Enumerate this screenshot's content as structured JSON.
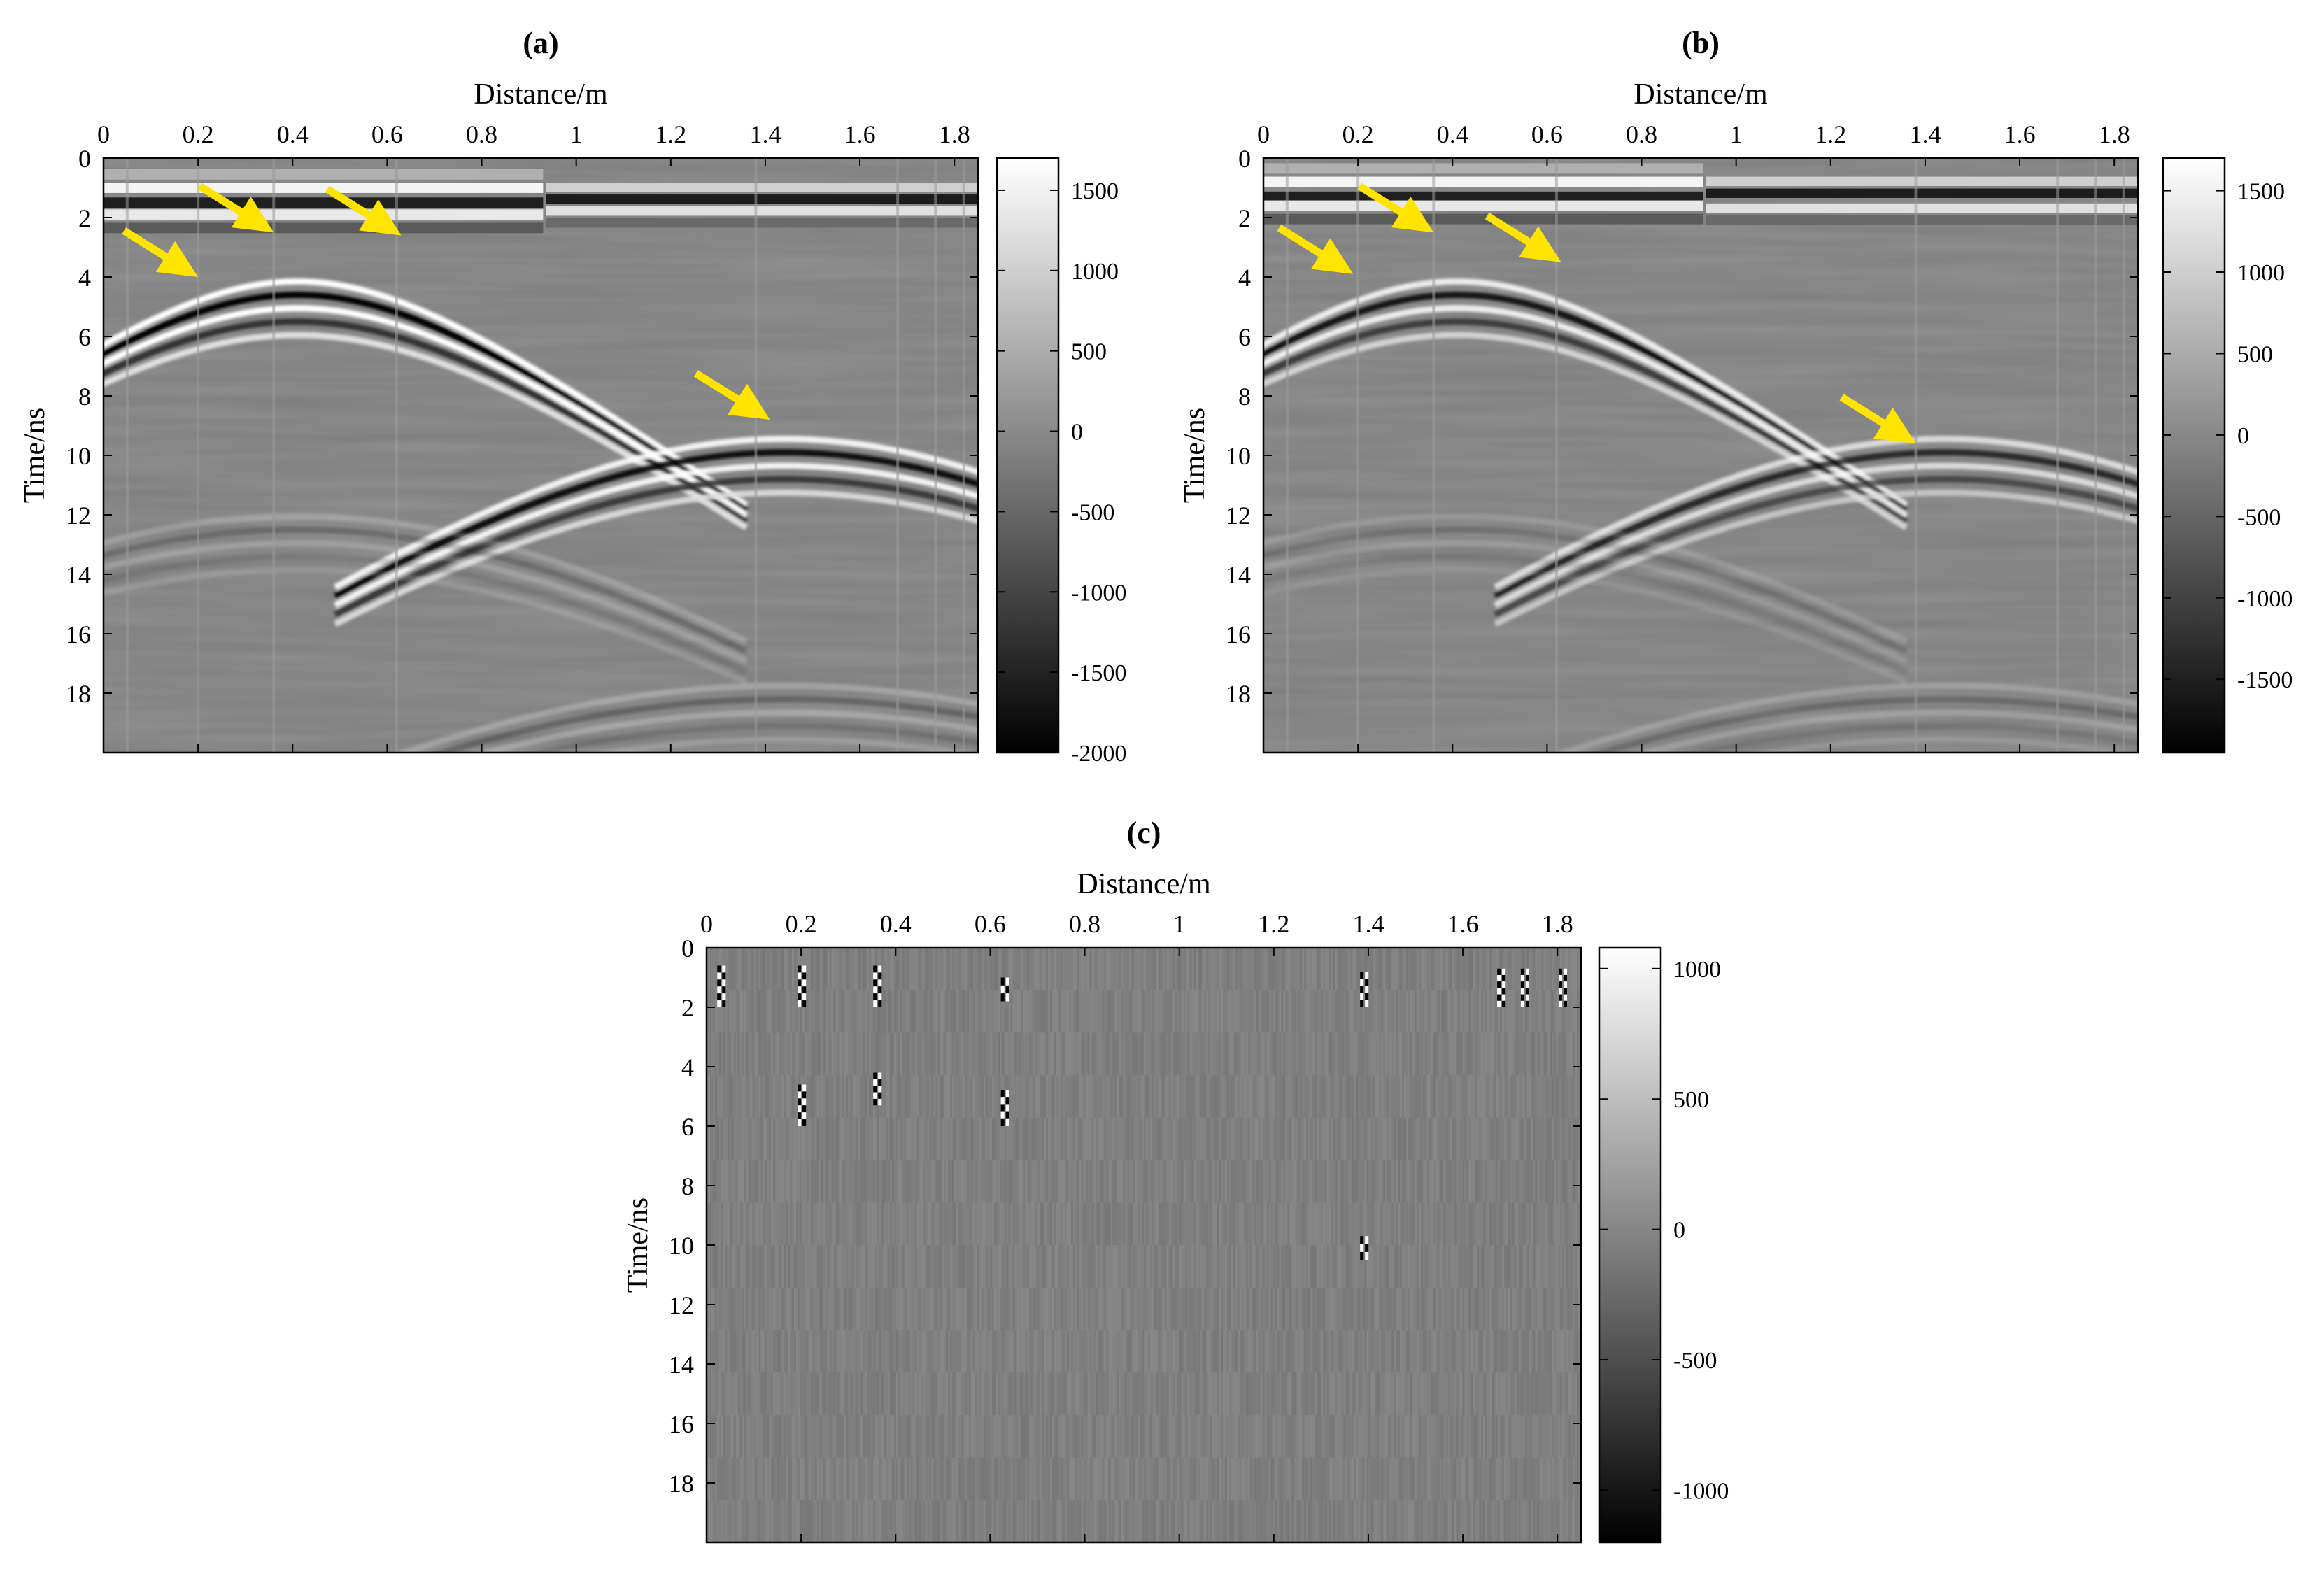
{
  "figure": {
    "arrow_color": "#FFE400"
  },
  "chart_data": [
    {
      "type": "heatmap",
      "panel_label": "(a)",
      "xlabel": "Distance/m",
      "ylabel": "Time/ns",
      "xlim": [
        0,
        1.85
      ],
      "ylim": [
        0,
        20
      ],
      "x_axis_position": "top",
      "y_axis_reversed": true,
      "colormap": "gray",
      "x_ticks": [
        0,
        0.2,
        0.4,
        0.6,
        0.8,
        1,
        1.2,
        1.4,
        1.6,
        1.8
      ],
      "x_tick_labels": [
        "0",
        "0.2",
        "0.4",
        "0.6",
        "0.8",
        "1",
        "1.2",
        "1.4",
        "1.6",
        "1.8"
      ],
      "y_ticks": [
        0,
        2,
        4,
        6,
        8,
        10,
        12,
        14,
        16,
        18
      ],
      "y_tick_labels": [
        "0",
        "2",
        "4",
        "6",
        "8",
        "10",
        "12",
        "14",
        "16",
        "18"
      ],
      "colorbar": {
        "range": [
          -2000,
          1700
        ],
        "ticks": [
          1500,
          1000,
          500,
          0,
          -500,
          -1000,
          -1500,
          -2000
        ],
        "tick_labels": [
          "1500",
          "1000",
          "500",
          "0",
          "-500",
          "-1000",
          "-1500",
          "-2000"
        ]
      },
      "features": {
        "direct_wave": {
          "left_segment_end_m": 0.93,
          "rows_ns": [
            1.0,
            1.9
          ],
          "right_rows_ns": [
            1.4,
            1.8
          ]
        },
        "hyperbolas": [
          {
            "apex_distance_m": 0.41,
            "apex_time_ns": 4.6,
            "strength": 1.0
          },
          {
            "apex_distance_m": 1.44,
            "apex_time_ns": 9.9,
            "strength": 0.9
          },
          {
            "apex_distance_m": 0.41,
            "apex_time_ns": 12.5,
            "strength": 0.2
          },
          {
            "apex_distance_m": 1.44,
            "apex_time_ns": 18.2,
            "strength": 0.25
          }
        ],
        "damaged_traces_m": [
          0.05,
          0.2,
          0.36,
          0.62,
          1.38,
          1.68,
          1.76,
          1.82
        ]
      },
      "arrows": [
        {
          "tip": [
            0.2,
            4.0
          ]
        },
        {
          "tip": [
            0.36,
            2.5
          ]
        },
        {
          "tip": [
            0.63,
            2.6
          ]
        },
        {
          "tip": [
            1.41,
            8.8
          ]
        }
      ]
    },
    {
      "type": "heatmap",
      "panel_label": "(b)",
      "xlabel": "Distance/m",
      "ylabel": "Time/ns",
      "xlim": [
        0,
        1.85
      ],
      "ylim": [
        0,
        20
      ],
      "x_axis_position": "top",
      "y_axis_reversed": true,
      "colormap": "gray",
      "x_ticks": [
        0,
        0.2,
        0.4,
        0.6,
        0.8,
        1,
        1.2,
        1.4,
        1.6,
        1.8
      ],
      "x_tick_labels": [
        "0",
        "0.2",
        "0.4",
        "0.6",
        "0.8",
        "1",
        "1.2",
        "1.4",
        "1.6",
        "1.8"
      ],
      "y_ticks": [
        0,
        2,
        4,
        6,
        8,
        10,
        12,
        14,
        16,
        18
      ],
      "y_tick_labels": [
        "0",
        "2",
        "4",
        "6",
        "8",
        "10",
        "12",
        "14",
        "16",
        "18"
      ],
      "colorbar": {
        "range": [
          -1950,
          1700
        ],
        "ticks": [
          1500,
          1000,
          500,
          0,
          -500,
          -1000,
          -1500
        ],
        "tick_labels": [
          "1500",
          "1000",
          "500",
          "0",
          "-500",
          "-1000",
          "-1500"
        ]
      },
      "features": {
        "direct_wave": {
          "left_segment_end_m": 0.93,
          "rows_ns": [
            0.8,
            1.6
          ],
          "right_rows_ns": [
            1.2,
            1.7
          ]
        },
        "hyperbolas": [
          {
            "apex_distance_m": 0.41,
            "apex_time_ns": 4.6,
            "strength": 0.85
          },
          {
            "apex_distance_m": 1.44,
            "apex_time_ns": 9.9,
            "strength": 0.7
          },
          {
            "apex_distance_m": 0.41,
            "apex_time_ns": 12.5,
            "strength": 0.15
          },
          {
            "apex_distance_m": 1.44,
            "apex_time_ns": 18.2,
            "strength": 0.2
          }
        ],
        "damaged_traces_m": [
          0.05,
          0.2,
          0.36,
          0.62,
          1.38,
          1.68,
          1.76,
          1.82
        ]
      },
      "arrows": [
        {
          "tip": [
            0.19,
            3.9
          ]
        },
        {
          "tip": [
            0.36,
            2.5
          ]
        },
        {
          "tip": [
            0.63,
            3.5
          ]
        },
        {
          "tip": [
            1.38,
            9.6
          ]
        }
      ]
    },
    {
      "type": "heatmap",
      "panel_label": "(c)",
      "xlabel": "Distance/m",
      "ylabel": "Time/ns",
      "xlim": [
        0,
        1.85
      ],
      "ylim": [
        0,
        20
      ],
      "x_axis_position": "top",
      "y_axis_reversed": true,
      "colormap": "gray",
      "x_ticks": [
        0,
        0.2,
        0.4,
        0.6,
        0.8,
        1,
        1.2,
        1.4,
        1.6,
        1.8
      ],
      "x_tick_labels": [
        "0",
        "0.2",
        "0.4",
        "0.6",
        "0.8",
        "1",
        "1.2",
        "1.4",
        "1.6",
        "1.8"
      ],
      "y_ticks": [
        0,
        2,
        4,
        6,
        8,
        10,
        12,
        14,
        16,
        18
      ],
      "y_tick_labels": [
        "0",
        "2",
        "4",
        "6",
        "8",
        "10",
        "12",
        "14",
        "16",
        "18"
      ],
      "colorbar": {
        "range": [
          -1200,
          1080
        ],
        "ticks": [
          1000,
          500,
          0,
          -500,
          -1000
        ],
        "tick_labels": [
          "1000",
          "500",
          "0",
          "-500",
          "-1000"
        ]
      },
      "features": {
        "random_noise": true,
        "anomalies": [
          {
            "distance_m": 0.03,
            "time_ns": [
              0.6,
              2.0
            ]
          },
          {
            "distance_m": 0.2,
            "time_ns": [
              0.6,
              2.0
            ]
          },
          {
            "distance_m": 0.2,
            "time_ns": [
              4.6,
              6.0
            ]
          },
          {
            "distance_m": 0.36,
            "time_ns": [
              0.6,
              2.0
            ]
          },
          {
            "distance_m": 0.36,
            "time_ns": [
              4.2,
              5.3
            ]
          },
          {
            "distance_m": 0.63,
            "time_ns": [
              1.0,
              1.8
            ]
          },
          {
            "distance_m": 0.63,
            "time_ns": [
              4.8,
              6.0
            ]
          },
          {
            "distance_m": 1.39,
            "time_ns": [
              0.8,
              2.0
            ]
          },
          {
            "distance_m": 1.39,
            "time_ns": [
              9.7,
              10.5
            ]
          },
          {
            "distance_m": 1.68,
            "time_ns": [
              0.7,
              2.0
            ]
          },
          {
            "distance_m": 1.73,
            "time_ns": [
              0.7,
              2.0
            ]
          },
          {
            "distance_m": 1.81,
            "time_ns": [
              0.7,
              2.0
            ]
          }
        ]
      }
    }
  ]
}
